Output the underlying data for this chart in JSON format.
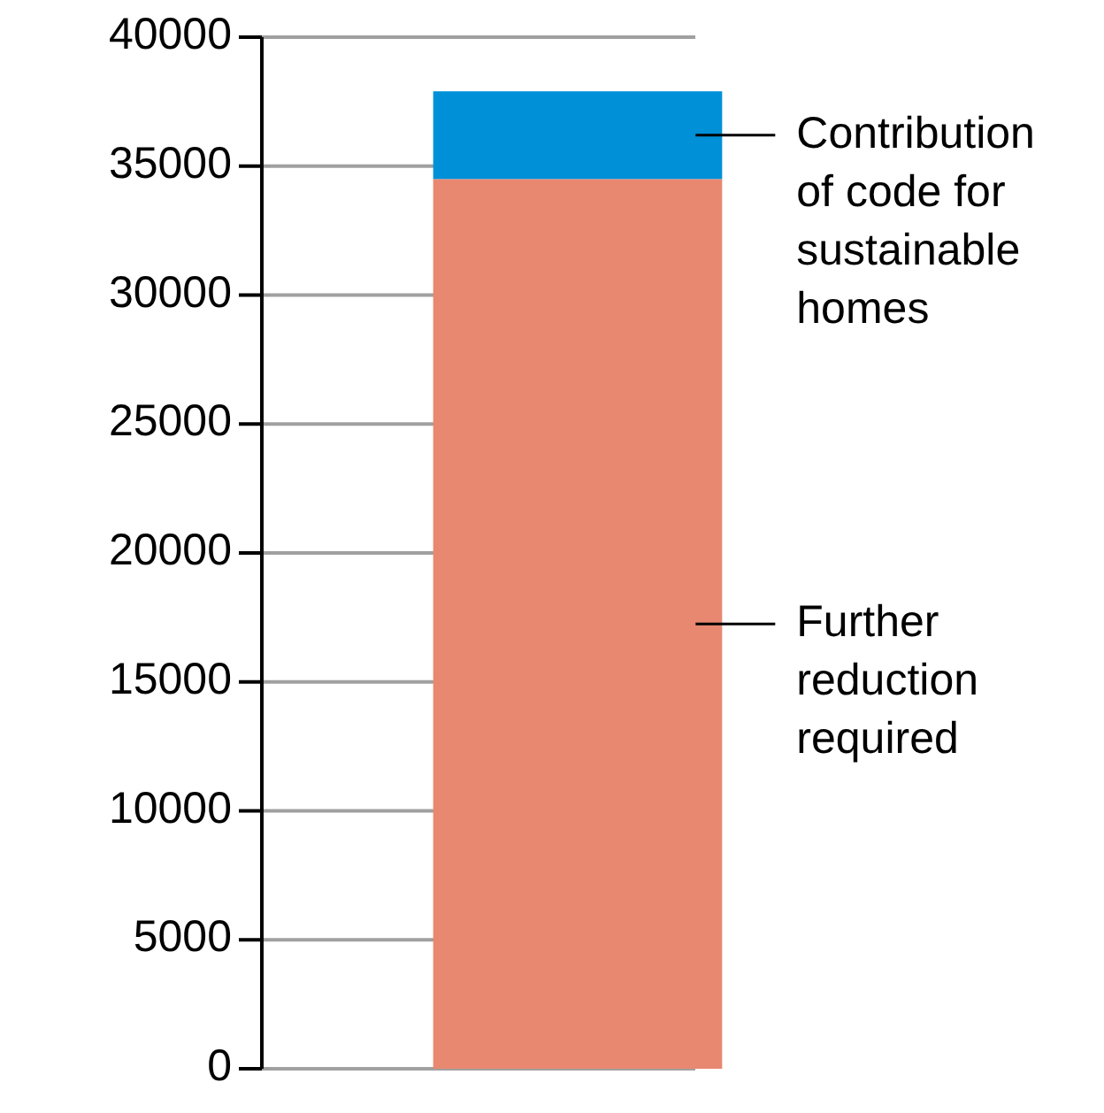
{
  "chart_data": {
    "type": "bar",
    "stacked": true,
    "categories": [
      null
    ],
    "series": [
      {
        "name": "Further reduction required",
        "color": "#e88870",
        "values": [
          34500
        ]
      },
      {
        "name": "Contribution of code for sustainable homes",
        "color": "#0090d8",
        "values": [
          3400
        ]
      }
    ],
    "ylim": [
      0,
      40000
    ],
    "yticks": [
      0,
      5000,
      10000,
      15000,
      20000,
      25000,
      30000,
      35000,
      40000
    ],
    "grid": "y"
  }
}
